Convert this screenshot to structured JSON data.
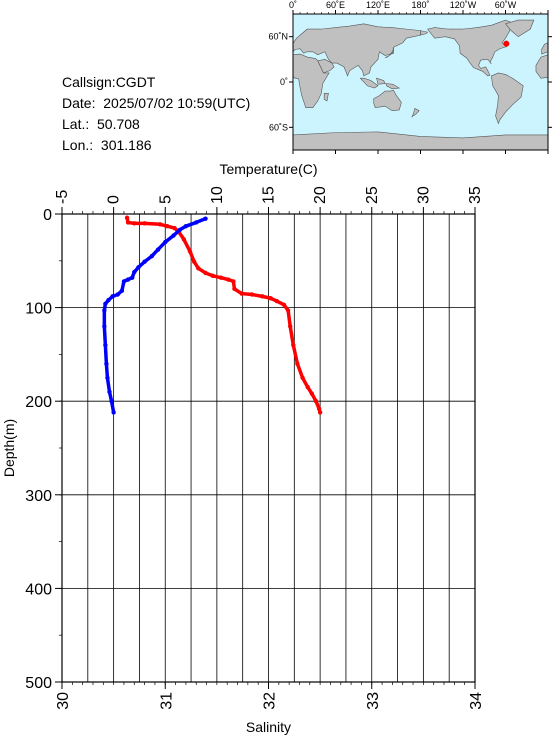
{
  "info": {
    "callsign": "Callsign:CGDT",
    "date": "Date:  2025/07/02 10:59(UTC)",
    "lat": "Lat.:  50.708",
    "lon": "Lon.:  301.186"
  },
  "map": {
    "top_labels": [
      "0˚",
      "60˚E",
      "120˚E",
      "180˚",
      "120˚W",
      "60˚W"
    ],
    "left_labels": [
      "60˚N",
      "0˚",
      "60˚S"
    ],
    "ocean_color": "#ccf4ff",
    "land_color": "#c0c0c0",
    "marker_color": "#ff0000",
    "marker": {
      "lon": 301.186,
      "lat": 50.708
    }
  },
  "chart_data": {
    "type": "line",
    "top_axis": {
      "label": "Temperature(C)",
      "range": [
        -5,
        35
      ],
      "ticks": [
        -5,
        0,
        5,
        10,
        15,
        20,
        25,
        30,
        35
      ]
    },
    "bottom_axis": {
      "label": "Salinity",
      "range": [
        30,
        34
      ],
      "ticks": [
        30,
        31,
        32,
        33,
        34
      ]
    },
    "left_axis": {
      "label": "Depth(m)",
      "range": [
        0,
        500
      ],
      "ticks": [
        0,
        100,
        200,
        300,
        400,
        500
      ],
      "inverted": true
    },
    "grid": true,
    "series": [
      {
        "axis": "temperature",
        "color": "#ff0000",
        "points": [
          [
            1.3,
            4
          ],
          [
            1.4,
            9
          ],
          [
            2,
            10
          ],
          [
            3,
            10
          ],
          [
            4.5,
            11
          ],
          [
            5.2,
            13
          ],
          [
            5.9,
            15
          ],
          [
            6.3,
            19
          ],
          [
            6.8,
            27
          ],
          [
            7.4,
            40
          ],
          [
            7.8,
            51
          ],
          [
            8.2,
            58
          ],
          [
            8.9,
            63
          ],
          [
            9.6,
            66
          ],
          [
            10.4,
            68
          ],
          [
            11.1,
            70
          ],
          [
            11.6,
            72
          ],
          [
            11.7,
            80
          ],
          [
            12.4,
            85
          ],
          [
            13.4,
            86
          ],
          [
            14.4,
            88
          ],
          [
            15.2,
            90
          ],
          [
            15.8,
            93
          ],
          [
            16.5,
            97
          ],
          [
            16.9,
            103
          ],
          [
            17.1,
            120
          ],
          [
            17.4,
            140
          ],
          [
            17.8,
            160
          ],
          [
            18.3,
            175
          ],
          [
            18.8,
            185
          ],
          [
            19.2,
            192
          ],
          [
            19.6,
            200
          ],
          [
            19.9,
            208
          ],
          [
            20.0,
            212
          ]
        ]
      },
      {
        "axis": "salinity",
        "color": "#0000ff",
        "points": [
          [
            31.39,
            5
          ],
          [
            31.3,
            9
          ],
          [
            31.2,
            13
          ],
          [
            31.14,
            17
          ],
          [
            31.08,
            23
          ],
          [
            31.0,
            30
          ],
          [
            30.93,
            38
          ],
          [
            30.87,
            45
          ],
          [
            30.8,
            51
          ],
          [
            30.74,
            57
          ],
          [
            30.7,
            62
          ],
          [
            30.68,
            68
          ],
          [
            30.64,
            70
          ],
          [
            30.6,
            72
          ],
          [
            30.58,
            82
          ],
          [
            30.54,
            86
          ],
          [
            30.49,
            88
          ],
          [
            30.45,
            92
          ],
          [
            30.42,
            96
          ],
          [
            30.41,
            103
          ],
          [
            30.41,
            120
          ],
          [
            30.42,
            140
          ],
          [
            30.43,
            160
          ],
          [
            30.44,
            175
          ],
          [
            30.46,
            190
          ],
          [
            30.48,
            200
          ],
          [
            30.5,
            212
          ]
        ]
      }
    ]
  }
}
